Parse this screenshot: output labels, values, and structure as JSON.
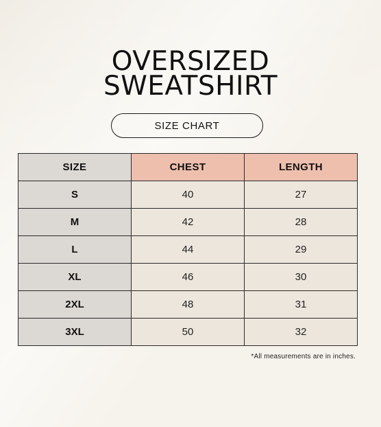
{
  "title": {
    "line1": "OVERSIZED",
    "line2": "SWEATSHIRT"
  },
  "subtitle": "SIZE CHART",
  "table": {
    "headers": [
      "SIZE",
      "CHEST",
      "LENGTH"
    ],
    "rows": [
      {
        "size": "S",
        "chest": "40",
        "length": "27"
      },
      {
        "size": "M",
        "chest": "42",
        "length": "28"
      },
      {
        "size": "L",
        "chest": "44",
        "length": "29"
      },
      {
        "size": "XL",
        "chest": "46",
        "length": "30"
      },
      {
        "size": "2XL",
        "chest": "48",
        "length": "31"
      },
      {
        "size": "3XL",
        "chest": "50",
        "length": "32"
      }
    ]
  },
  "note": "*All measurements are in inches.",
  "colors": {
    "background": "#f6f3ec",
    "size_column": "#dcd8d3",
    "measure_header": "#efbfae",
    "value_cells": "#ede6dc",
    "text": "#111111"
  }
}
